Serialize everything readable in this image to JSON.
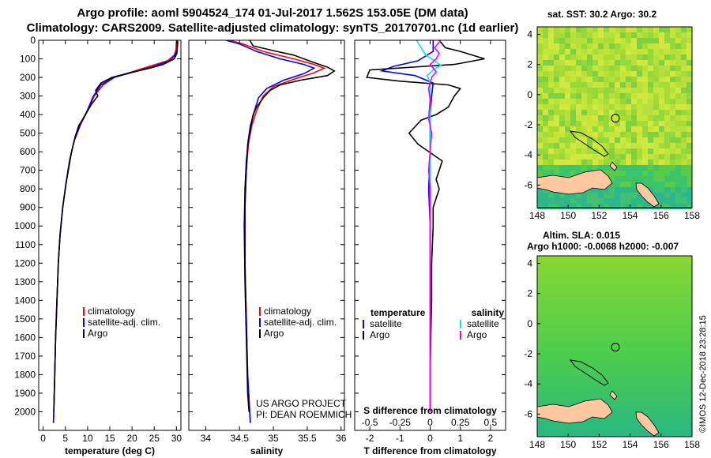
{
  "header": {
    "line1": "Argo profile: aoml 5904524_174 01-Jul-2017 1.562S 153.05E (DM data)",
    "line2": "Climatology: CARS2009. Satellite-adjusted climatology: synTS_20170701.nc (1d earlier)"
  },
  "colors": {
    "climatology": "#ff0000",
    "satellite": "#0000ff",
    "argo": "#000000",
    "sal_satellite": "#00e5ee",
    "sal_argo": "#ee00ee"
  },
  "chart_data": [
    {
      "type": "line",
      "id": "temperature-profile",
      "xlabel": "temperature (deg C)",
      "xlim": [
        -1,
        31
      ],
      "xticks": [
        0,
        5,
        10,
        15,
        20,
        25,
        30
      ],
      "ylim": [
        2100,
        0
      ],
      "yticks": [
        0,
        100,
        200,
        300,
        400,
        500,
        600,
        700,
        800,
        900,
        1000,
        1100,
        1200,
        1300,
        1400,
        1500,
        1600,
        1700,
        1800,
        1900,
        2000
      ],
      "legend": [
        {
          "name": "climatology",
          "color": "#ff0000"
        },
        {
          "name": "satellite-adj. clim.",
          "color": "#0000ff"
        },
        {
          "name": "Argo",
          "color": "#000000"
        }
      ],
      "series": [
        {
          "name": "climatology",
          "color": "#ff0000",
          "points": [
            [
              30,
              0
            ],
            [
              29.9,
              50
            ],
            [
              29.5,
              80
            ],
            [
              28,
              110
            ],
            [
              24,
              140
            ],
            [
              20,
              170
            ],
            [
              16,
              200
            ],
            [
              13.5,
              240
            ],
            [
              11.5,
              300
            ],
            [
              10,
              380
            ],
            [
              8.5,
              450
            ],
            [
              7,
              540
            ],
            [
              6,
              640
            ],
            [
              5.2,
              760
            ],
            [
              4.4,
              900
            ],
            [
              3.8,
              1050
            ],
            [
              3.4,
              1200
            ],
            [
              3.1,
              1400
            ],
            [
              2.8,
              1600
            ],
            [
              2.6,
              1800
            ],
            [
              2.4,
              2000
            ],
            [
              2.3,
              2060
            ]
          ]
        },
        {
          "name": "satellite-adj. clim.",
          "color": "#0000ff",
          "points": [
            [
              30.2,
              0
            ],
            [
              30.1,
              50
            ],
            [
              29.7,
              80
            ],
            [
              28.5,
              110
            ],
            [
              25,
              140
            ],
            [
              20.5,
              170
            ],
            [
              16,
              200
            ],
            [
              13,
              240
            ],
            [
              11.3,
              300
            ],
            [
              9.9,
              380
            ],
            [
              8.4,
              450
            ],
            [
              7,
              540
            ],
            [
              6,
              640
            ],
            [
              5.2,
              760
            ],
            [
              4.4,
              900
            ],
            [
              3.8,
              1050
            ],
            [
              3.4,
              1200
            ],
            [
              3.1,
              1400
            ],
            [
              2.8,
              1600
            ],
            [
              2.6,
              1800
            ],
            [
              2.4,
              2000
            ],
            [
              2.3,
              2060
            ]
          ]
        },
        {
          "name": "Argo",
          "color": "#000000",
          "points": [
            [
              30.3,
              5
            ],
            [
              30.2,
              40
            ],
            [
              30.1,
              70
            ],
            [
              29.5,
              100
            ],
            [
              27,
              130
            ],
            [
              24,
              150
            ],
            [
              19.5,
              175
            ],
            [
              15.5,
              200
            ],
            [
              13,
              230
            ],
            [
              11.8,
              270
            ],
            [
              12.3,
              300
            ],
            [
              11,
              340
            ],
            [
              10,
              380
            ],
            [
              9.3,
              410
            ],
            [
              8,
              460
            ],
            [
              7.2,
              520
            ],
            [
              6.4,
              600
            ],
            [
              5.8,
              680
            ],
            [
              5.1,
              780
            ],
            [
              4.4,
              900
            ],
            [
              3.8,
              1050
            ],
            [
              3.4,
              1200
            ],
            [
              3.1,
              1400
            ],
            [
              2.8,
              1600
            ],
            [
              2.6,
              1800
            ],
            [
              2.4,
              2000
            ]
          ]
        }
      ]
    },
    {
      "type": "line",
      "id": "salinity-profile",
      "xlabel": "salinity",
      "xlim": [
        33.75,
        36.05
      ],
      "xticks": [
        34,
        34.5,
        35,
        35.5,
        36
      ],
      "ylim": [
        2100,
        0
      ],
      "legend": [
        {
          "name": "climatology",
          "color": "#ff0000"
        },
        {
          "name": "satellite-adj. clim.",
          "color": "#0000ff"
        },
        {
          "name": "Argo",
          "color": "#000000"
        }
      ],
      "annotation": [
        "US ARGO PROJECT",
        "PI: DEAN ROEMMICH"
      ],
      "series": [
        {
          "name": "climatology",
          "color": "#ff0000",
          "points": [
            [
              34.35,
              0
            ],
            [
              34.55,
              20
            ],
            [
              34.85,
              60
            ],
            [
              35.3,
              100
            ],
            [
              35.6,
              130
            ],
            [
              35.75,
              150
            ],
            [
              35.6,
              175
            ],
            [
              35.3,
              210
            ],
            [
              35.0,
              250
            ],
            [
              34.85,
              300
            ],
            [
              34.75,
              380
            ],
            [
              34.68,
              460
            ],
            [
              34.63,
              560
            ],
            [
              34.6,
              700
            ],
            [
              34.58,
              900
            ],
            [
              34.58,
              1200
            ],
            [
              34.6,
              1500
            ],
            [
              34.62,
              1800
            ],
            [
              34.65,
              2000
            ],
            [
              34.66,
              2060
            ]
          ]
        },
        {
          "name": "satellite-adj. clim.",
          "color": "#0000ff",
          "points": [
            [
              34.3,
              0
            ],
            [
              34.5,
              20
            ],
            [
              34.75,
              60
            ],
            [
              35.1,
              100
            ],
            [
              35.45,
              130
            ],
            [
              35.6,
              150
            ],
            [
              35.45,
              180
            ],
            [
              35.15,
              215
            ],
            [
              34.9,
              260
            ],
            [
              34.78,
              310
            ],
            [
              34.72,
              380
            ],
            [
              34.66,
              460
            ],
            [
              34.62,
              560
            ],
            [
              34.6,
              700
            ],
            [
              34.58,
              900
            ],
            [
              34.58,
              1200
            ],
            [
              34.6,
              1500
            ],
            [
              34.62,
              1800
            ],
            [
              34.65,
              2000
            ],
            [
              34.66,
              2060
            ]
          ]
        },
        {
          "name": "Argo",
          "color": "#000000",
          "points": [
            [
              34.65,
              0
            ],
            [
              34.7,
              30
            ],
            [
              35.05,
              60
            ],
            [
              35.3,
              80
            ],
            [
              35.45,
              100
            ],
            [
              35.6,
              120
            ],
            [
              35.8,
              145
            ],
            [
              35.9,
              165
            ],
            [
              35.8,
              190
            ],
            [
              35.4,
              215
            ],
            [
              35.1,
              240
            ],
            [
              34.95,
              270
            ],
            [
              34.85,
              310
            ],
            [
              34.75,
              360
            ],
            [
              34.7,
              400
            ],
            [
              34.67,
              460
            ],
            [
              34.63,
              540
            ],
            [
              34.6,
              650
            ],
            [
              34.58,
              800
            ],
            [
              34.57,
              1000
            ],
            [
              34.58,
              1300
            ],
            [
              34.6,
              1600
            ],
            [
              34.62,
              1900
            ],
            [
              34.64,
              2000
            ]
          ]
        }
      ]
    },
    {
      "type": "line",
      "id": "difference-profile",
      "xlabel": "T difference from climatology",
      "xlabel_top": "S difference from climatology",
      "xlim": [
        -2.5,
        2.5
      ],
      "xticks": [
        -2,
        -1,
        0,
        1,
        2
      ],
      "sticks": [
        "-0.5",
        "-0.25",
        "0",
        "0.25",
        "0.5"
      ],
      "ylim": [
        2100,
        0
      ],
      "legend_left_title": "temperature",
      "legend_left": [
        {
          "name": "satellite",
          "color": "#0000ff"
        },
        {
          "name": "Argo",
          "color": "#000000"
        }
      ],
      "legend_right_title": "salinity",
      "legend_right": [
        {
          "name": "satellite",
          "color": "#00e5ee"
        },
        {
          "name": "Argo",
          "color": "#ee00ee"
        }
      ],
      "series": [
        {
          "name": "T satellite",
          "color": "#0000ff",
          "points": [
            [
              0.1,
              0
            ],
            [
              0.1,
              60
            ],
            [
              -0.4,
              110
            ],
            [
              -1.2,
              140
            ],
            [
              -1.6,
              165
            ],
            [
              -0.5,
              190
            ],
            [
              0.1,
              230
            ],
            [
              0.05,
              300
            ],
            [
              0,
              400
            ],
            [
              0,
              600
            ],
            [
              -0.05,
              800
            ],
            [
              0,
              1000
            ],
            [
              0,
              1500
            ],
            [
              0,
              2000
            ]
          ]
        },
        {
          "name": "T Argo",
          "color": "#000000",
          "points": [
            [
              0.3,
              0
            ],
            [
              0.5,
              40
            ],
            [
              1.0,
              60
            ],
            [
              1.8,
              100
            ],
            [
              0.8,
              130
            ],
            [
              -2.0,
              160
            ],
            [
              -2.1,
              200
            ],
            [
              -1.0,
              220
            ],
            [
              0.6,
              240
            ],
            [
              1.0,
              260
            ],
            [
              0.8,
              300
            ],
            [
              0.6,
              360
            ],
            [
              0.2,
              400
            ],
            [
              -0.3,
              430
            ],
            [
              -0.7,
              500
            ],
            [
              -0.4,
              560
            ],
            [
              0.4,
              650
            ],
            [
              0.2,
              750
            ],
            [
              0.3,
              800
            ],
            [
              0.1,
              900
            ],
            [
              0.1,
              1000
            ],
            [
              0.05,
              1200
            ],
            [
              0.05,
              1400
            ],
            [
              0.02,
              1600
            ],
            [
              0,
              1800
            ],
            [
              0,
              2000
            ]
          ]
        },
        {
          "name": "S satellite",
          "color": "#00e5ee",
          "points": [
            [
              -0.45,
              0
            ],
            [
              -0.3,
              40
            ],
            [
              -0.15,
              80
            ],
            [
              0.15,
              110
            ],
            [
              0.35,
              135
            ],
            [
              0.1,
              160
            ],
            [
              -0.1,
              190
            ],
            [
              0,
              230
            ],
            [
              0,
              300
            ],
            [
              0,
              400
            ],
            [
              0,
              600
            ],
            [
              0,
              800
            ],
            [
              0,
              1200
            ],
            [
              0,
              1600
            ],
            [
              0,
              2000
            ]
          ]
        },
        {
          "name": "S Argo",
          "color": "#ee00ee",
          "points": [
            [
              0.35,
              0
            ],
            [
              0.15,
              40
            ],
            [
              0.3,
              70
            ],
            [
              0.2,
              100
            ],
            [
              0,
              130
            ],
            [
              0.1,
              150
            ],
            [
              0.2,
              170
            ],
            [
              0.05,
              200
            ],
            [
              -0.05,
              260
            ],
            [
              0,
              320
            ],
            [
              -0.05,
              420
            ],
            [
              0.05,
              500
            ],
            [
              0,
              600
            ],
            [
              -0.05,
              700
            ],
            [
              0,
              800
            ],
            [
              0,
              1000
            ],
            [
              0,
              1300
            ],
            [
              0,
              1600
            ],
            [
              0,
              1900
            ],
            [
              0,
              2000
            ]
          ]
        }
      ]
    }
  ],
  "maps": {
    "sst": {
      "title": "sat. SST: 30.2 Argo: 30.2",
      "xticks": [
        148,
        150,
        152,
        154,
        156,
        158
      ],
      "yticks": [
        4,
        2,
        0,
        -2,
        -4,
        -6
      ],
      "marker": [
        153.05,
        -1.562
      ]
    },
    "sla": {
      "title1": "Altim. SLA: 0.015",
      "title2": "Argo h1000: -0.0068 h2000: -0.007",
      "xticks": [
        148,
        150,
        152,
        154,
        156,
        158
      ],
      "yticks": [
        4,
        2,
        0,
        -2,
        -4,
        -6
      ],
      "marker": [
        153.05,
        -1.562
      ]
    }
  },
  "stamp": "©IMOS 12-Dec-2018 23:28:15"
}
